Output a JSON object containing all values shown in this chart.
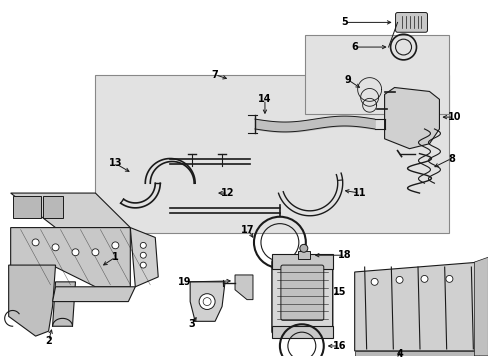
{
  "bg_color": "#ffffff",
  "line_color": "#1a1a1a",
  "box_fill": "#e0e0e0",
  "part_fill": "#d8d8d8",
  "figsize": [
    4.89,
    3.6
  ],
  "dpi": 100,
  "label_positions": {
    "1": [
      0.115,
      0.235,
      0.13,
      0.275
    ],
    "2": [
      0.075,
      0.085,
      0.09,
      0.115
    ],
    "3": [
      0.315,
      0.095,
      0.33,
      0.115
    ],
    "4": [
      0.795,
      0.055,
      0.8,
      0.075
    ],
    "5": [
      0.635,
      0.915,
      0.685,
      0.905
    ],
    "6": [
      0.635,
      0.855,
      0.685,
      0.855
    ],
    "7": [
      0.415,
      0.755,
      0.455,
      0.72
    ],
    "8": [
      0.845,
      0.505,
      0.835,
      0.525
    ],
    "9": [
      0.72,
      0.77,
      0.745,
      0.745
    ],
    "10": [
      0.875,
      0.67,
      0.865,
      0.685
    ],
    "11": [
      0.705,
      0.535,
      0.69,
      0.555
    ],
    "12": [
      0.47,
      0.575,
      0.485,
      0.595
    ],
    "13": [
      0.22,
      0.595,
      0.245,
      0.575
    ],
    "14": [
      0.545,
      0.695,
      0.545,
      0.67
    ],
    "15": [
      0.69,
      0.345,
      0.665,
      0.34
    ],
    "16": [
      0.665,
      0.215,
      0.635,
      0.225
    ],
    "17": [
      0.495,
      0.435,
      0.525,
      0.43
    ],
    "18": [
      0.69,
      0.41,
      0.665,
      0.4
    ],
    "19": [
      0.365,
      0.345,
      0.395,
      0.345
    ]
  }
}
